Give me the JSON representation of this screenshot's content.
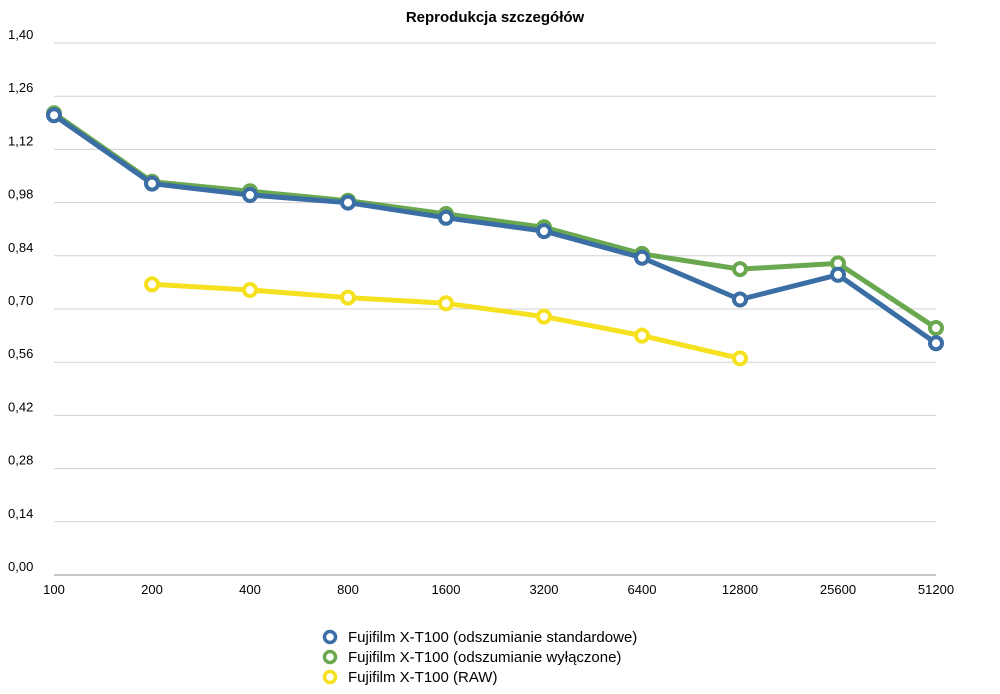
{
  "chart_data": {
    "type": "line",
    "title": "Reprodukcja szczegółów",
    "xlabel": "",
    "ylabel": "",
    "categories": [
      "100",
      "200",
      "400",
      "800",
      "1600",
      "3200",
      "6400",
      "12800",
      "25600",
      "51200"
    ],
    "yticks": [
      "0,00",
      "0,14",
      "0,28",
      "0,42",
      "0,56",
      "0,70",
      "0,84",
      "0,98",
      "1,12",
      "1,26",
      "1,40"
    ],
    "ylim": [
      0,
      1.4
    ],
    "grid": true,
    "legend_position": "bottom",
    "series": [
      {
        "name": "Fujifilm X-T100 (odszumianie standardowe)",
        "color": "#3a6ea5",
        "values": [
          1.21,
          1.03,
          1.0,
          0.98,
          0.94,
          0.905,
          0.835,
          0.725,
          0.79,
          0.61
        ]
      },
      {
        "name": "Fujifilm X-T100 (odszumianie wyłączone)",
        "color": "#6aa84f",
        "values": [
          1.215,
          1.035,
          1.01,
          0.985,
          0.95,
          0.915,
          0.845,
          0.805,
          0.82,
          0.65
        ]
      },
      {
        "name": "Fujifilm X-T100 (RAW)",
        "color": "#f5e11f",
        "values": [
          null,
          0.765,
          0.75,
          0.73,
          0.715,
          0.68,
          0.63,
          0.57,
          null,
          null
        ]
      }
    ]
  }
}
